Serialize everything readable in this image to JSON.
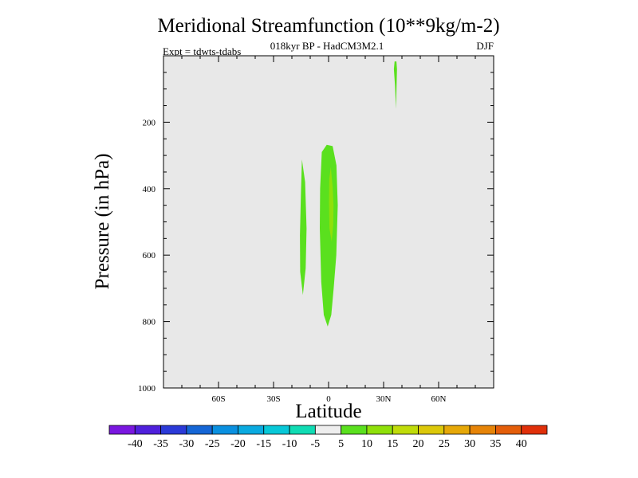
{
  "chart_data": {
    "type": "contour",
    "title": "Meridional Streamfunction (10**9kg/m-2)",
    "subtitle": "018kyr BP - HadCM3M2.1",
    "left_label": "Expt = tdwts-tdabs",
    "right_label": "DJF",
    "xlabel": "Latitude",
    "ylabel": "Pressure (in hPa)",
    "xlim": [
      -90,
      90
    ],
    "ylim": [
      1000,
      0
    ],
    "x_ticks": [
      {
        "value": -60,
        "label": "60S"
      },
      {
        "value": -30,
        "label": "30S"
      },
      {
        "value": 0,
        "label": "0"
      },
      {
        "value": 30,
        "label": "30N"
      },
      {
        "value": 60,
        "label": "60N"
      }
    ],
    "y_ticks": [
      {
        "value": 200,
        "label": "200"
      },
      {
        "value": 400,
        "label": "400"
      },
      {
        "value": 600,
        "label": "600"
      },
      {
        "value": 800,
        "label": "800"
      },
      {
        "value": 1000,
        "label": "1000"
      }
    ],
    "background_color": "#e8e8e8",
    "regions": [
      {
        "name": "upper-north-5-10",
        "level": "5 to 10",
        "color": "#5ae01e",
        "points": [
          [
            36,
            17
          ],
          [
            35.6,
            40
          ],
          [
            36.2,
            90
          ],
          [
            36.8,
            160
          ],
          [
            37.1,
            90
          ],
          [
            37.3,
            40
          ],
          [
            37,
            17
          ]
        ]
      },
      {
        "name": "south-lobe-5-10",
        "level": "5 to 10",
        "color": "#5ae01e",
        "points": [
          [
            -14.5,
            312
          ],
          [
            -15,
            400
          ],
          [
            -15.6,
            540
          ],
          [
            -15.5,
            650
          ],
          [
            -14,
            720
          ],
          [
            -12.5,
            640
          ],
          [
            -12,
            520
          ],
          [
            -12.8,
            380
          ]
        ]
      },
      {
        "name": "equatorial-cell-5-10",
        "level": "5 to 10",
        "color": "#5ae01e",
        "points": [
          [
            -1,
            268
          ],
          [
            2.2,
            272
          ],
          [
            4.3,
            330
          ],
          [
            5,
            450
          ],
          [
            4.2,
            600
          ],
          [
            2.8,
            700
          ],
          [
            1.5,
            780
          ],
          [
            -0.5,
            815
          ],
          [
            -2.6,
            780
          ],
          [
            -4,
            680
          ],
          [
            -4.8,
            520
          ],
          [
            -4.6,
            400
          ],
          [
            -3.7,
            290
          ]
        ]
      },
      {
        "name": "equatorial-core-10-15",
        "level": "10 to 15",
        "color": "#8fe00a",
        "points": [
          [
            1.2,
            335
          ],
          [
            2.2,
            395
          ],
          [
            2.7,
            450
          ],
          [
            2.5,
            510
          ],
          [
            1.7,
            560
          ],
          [
            0.5,
            520
          ],
          [
            0.2,
            440
          ],
          [
            0.4,
            370
          ]
        ]
      }
    ],
    "colorbar": {
      "labels": [
        "-40",
        "-35",
        "-30",
        "-25",
        "-20",
        "-15",
        "-10",
        "-5",
        "5",
        "10",
        "15",
        "20",
        "25",
        "30",
        "35",
        "40"
      ],
      "colors": [
        "#7a17e0",
        "#4f20dc",
        "#2b3ad8",
        "#1566d6",
        "#0a90e0",
        "#0aaae0",
        "#08c8d8",
        "#10dcb4",
        "#eeeeee",
        "#5ae01e",
        "#8fe00a",
        "#c0dc0a",
        "#dcc80a",
        "#e6a808",
        "#e68408",
        "#e45e0a",
        "#e0300a"
      ]
    }
  }
}
